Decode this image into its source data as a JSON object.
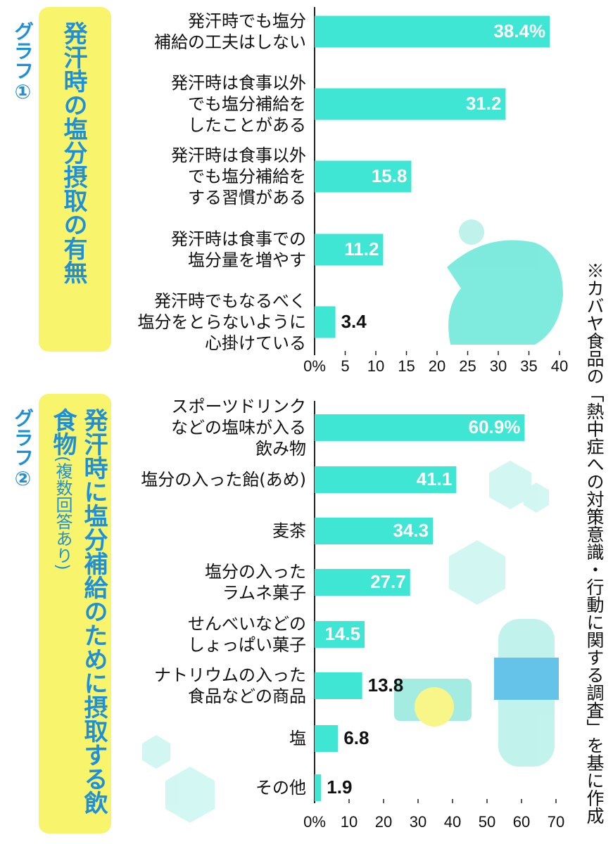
{
  "chart_data": [
    {
      "type": "bar",
      "orientation": "horizontal",
      "badge": "グラフ①",
      "title": "発汗時の塩分摂取の有無",
      "categories": [
        "発汗時でも塩分\n補給の工夫はしない",
        "発汗時は食事以外\nでも塩分補給を\nしたことがある",
        "発汗時は食事以外\nでも塩分補給を\nする習慣がある",
        "発汗時は食事での\n塩分量を増やす",
        "発汗時でもなるべく\n塩分をとらないように\n心掛けている"
      ],
      "values": [
        38.4,
        31.2,
        15.8,
        11.2,
        3.4
      ],
      "value_labels": [
        "38.4%",
        "31.2",
        "15.8",
        "11.2",
        "3.4"
      ],
      "color": "#3fe6d3",
      "xlim": [
        0,
        40
      ],
      "xticks": [
        {
          "value": 0,
          "label": "0%"
        },
        5,
        10,
        15,
        20,
        25,
        30,
        35,
        40
      ]
    },
    {
      "type": "bar",
      "orientation": "horizontal",
      "badge": "グラフ②",
      "title": "発汗時に塩分補給のために摂取する飲食物",
      "subtitle": "(複数回答あり)",
      "categories": [
        "スポーツドリンク\nなどの塩味が入る\n飲み物",
        "塩分の入った飴(あめ)",
        "麦茶",
        "塩分の入った\nラムネ菓子",
        "せんべいなどの\nしょっぱい菓子",
        "ナトリウムの入った\n食品などの商品",
        "塩",
        "その他"
      ],
      "values": [
        60.9,
        41.1,
        34.3,
        27.7,
        14.5,
        13.8,
        6.8,
        1.9
      ],
      "value_labels": [
        "60.9%",
        "41.1",
        "34.3",
        "27.7",
        "14.5",
        "13.8",
        "6.8",
        "1.9"
      ],
      "color": "#3fe6d3",
      "xlim": [
        0,
        70
      ],
      "xticks": [
        {
          "value": 0,
          "label": "0%"
        },
        10,
        20,
        30,
        40,
        50,
        60,
        70
      ]
    }
  ],
  "note": "※カバヤ食品の「熱中症への対策意識・行動に関する調査」を基に作成"
}
